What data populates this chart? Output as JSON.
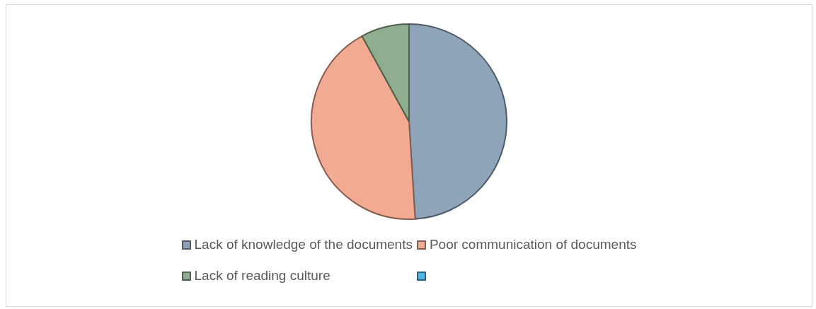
{
  "chart_data": {
    "type": "pie",
    "categories": [
      "Lack of knowledge of the documents",
      "Poor communication of documents",
      "Lack of reading culture",
      null
    ],
    "values": [
      49,
      43,
      8,
      0
    ],
    "colors": [
      "#8ea4b9",
      "#f2aa92",
      "#8fae8f",
      "#4fb3e6"
    ],
    "legend": "bottom"
  }
}
